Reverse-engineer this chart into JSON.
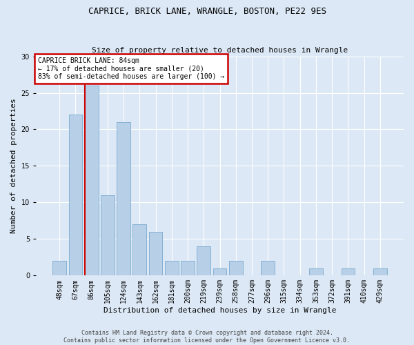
{
  "title_line1": "CAPRICE, BRICK LANE, WRANGLE, BOSTON, PE22 9ES",
  "title_line2": "Size of property relative to detached houses in Wrangle",
  "xlabel": "Distribution of detached houses by size in Wrangle",
  "ylabel": "Number of detached properties",
  "categories": [
    "48sqm",
    "67sqm",
    "86sqm",
    "105sqm",
    "124sqm",
    "143sqm",
    "162sqm",
    "181sqm",
    "200sqm",
    "219sqm",
    "239sqm",
    "258sqm",
    "277sqm",
    "296sqm",
    "315sqm",
    "334sqm",
    "353sqm",
    "372sqm",
    "391sqm",
    "410sqm",
    "429sqm"
  ],
  "values": [
    2,
    22,
    26,
    11,
    21,
    7,
    6,
    2,
    2,
    4,
    1,
    2,
    0,
    2,
    0,
    0,
    1,
    0,
    1,
    0,
    1
  ],
  "bar_color": "#b8cfe8",
  "bar_edge_color": "#7aaad0",
  "annotation_text_line1": "CAPRICE BRICK LANE: 84sqm",
  "annotation_text_line2": "← 17% of detached houses are smaller (20)",
  "annotation_text_line3": "83% of semi-detached houses are larger (100) →",
  "annotation_box_color": "#ffffff",
  "annotation_box_edge": "#cc0000",
  "vline_color": "#cc0000",
  "ylim": [
    0,
    30
  ],
  "yticks": [
    0,
    5,
    10,
    15,
    20,
    25,
    30
  ],
  "footer_line1": "Contains HM Land Registry data © Crown copyright and database right 2024.",
  "footer_line2": "Contains public sector information licensed under the Open Government Licence v3.0.",
  "bg_color": "#dce8f5",
  "plot_bg_color": "#dce8f5",
  "title_fontsize": 9,
  "subtitle_fontsize": 8,
  "ylabel_fontsize": 8,
  "xlabel_fontsize": 8,
  "tick_fontsize": 7,
  "annotation_fontsize": 7,
  "footer_fontsize": 6
}
